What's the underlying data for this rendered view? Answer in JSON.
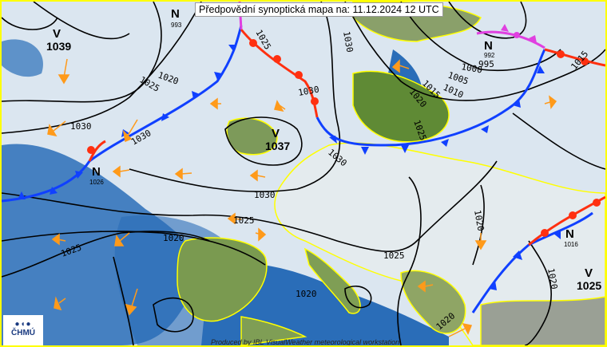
{
  "title": "Předpovědní synoptická mapa na: 11.12.2024 12 UTC",
  "credit": "Produced by IBL VisualWeather meteorological workstation",
  "logo": {
    "symbol": "●◖●",
    "text": "ČHMÚ"
  },
  "colors": {
    "sea": "#2a6db8",
    "sea_light": "#dbe6f0",
    "land": "#6f8f45",
    "border": "#ffff00",
    "cold_front": "#1040ff",
    "warm_front": "#ff3010",
    "occluded_front": "#e040e0",
    "wind_arrow": "#ff9a1a"
  },
  "pressure_centers": [
    {
      "type": "V",
      "value": "1039"
    },
    {
      "type": "N",
      "value": "993"
    },
    {
      "type": "N",
      "value": "992"
    },
    {
      "type": "V",
      "value": "1037"
    },
    {
      "type": "N",
      "value": "1026"
    },
    {
      "type": "N",
      "value": "1016"
    },
    {
      "type": "V",
      "value": "1025"
    }
  ],
  "isobar_labels": [
    "1025",
    "1020",
    "1025",
    "1030",
    "1030",
    "1030",
    "1030",
    "1030",
    "1030",
    "1025",
    "1020",
    "1025",
    "1025",
    "1020",
    "1020",
    "1020",
    "1015",
    "1010",
    "1005",
    "1000",
    "995",
    "1015",
    "1020",
    "1025",
    "1020"
  ]
}
